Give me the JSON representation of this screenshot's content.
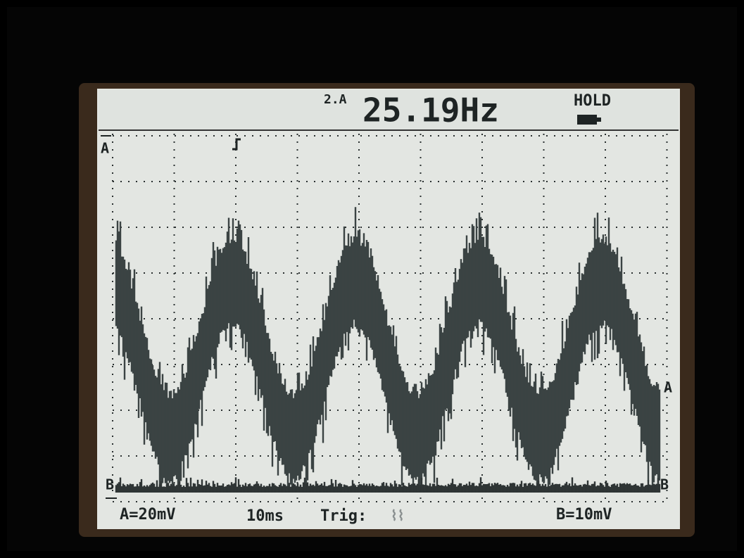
{
  "top_bar": {
    "channel": "2.A",
    "frequency": "25.19Hz",
    "status": "HOLD"
  },
  "markers": {
    "a_left": "A",
    "a_right": "A",
    "b_left": "B",
    "b_right": "B"
  },
  "bottom_bar": {
    "ch_a": "A=20mV",
    "timebase": "10ms",
    "trigger": "Trig:",
    "ch_b": "B=10mV"
  }
}
